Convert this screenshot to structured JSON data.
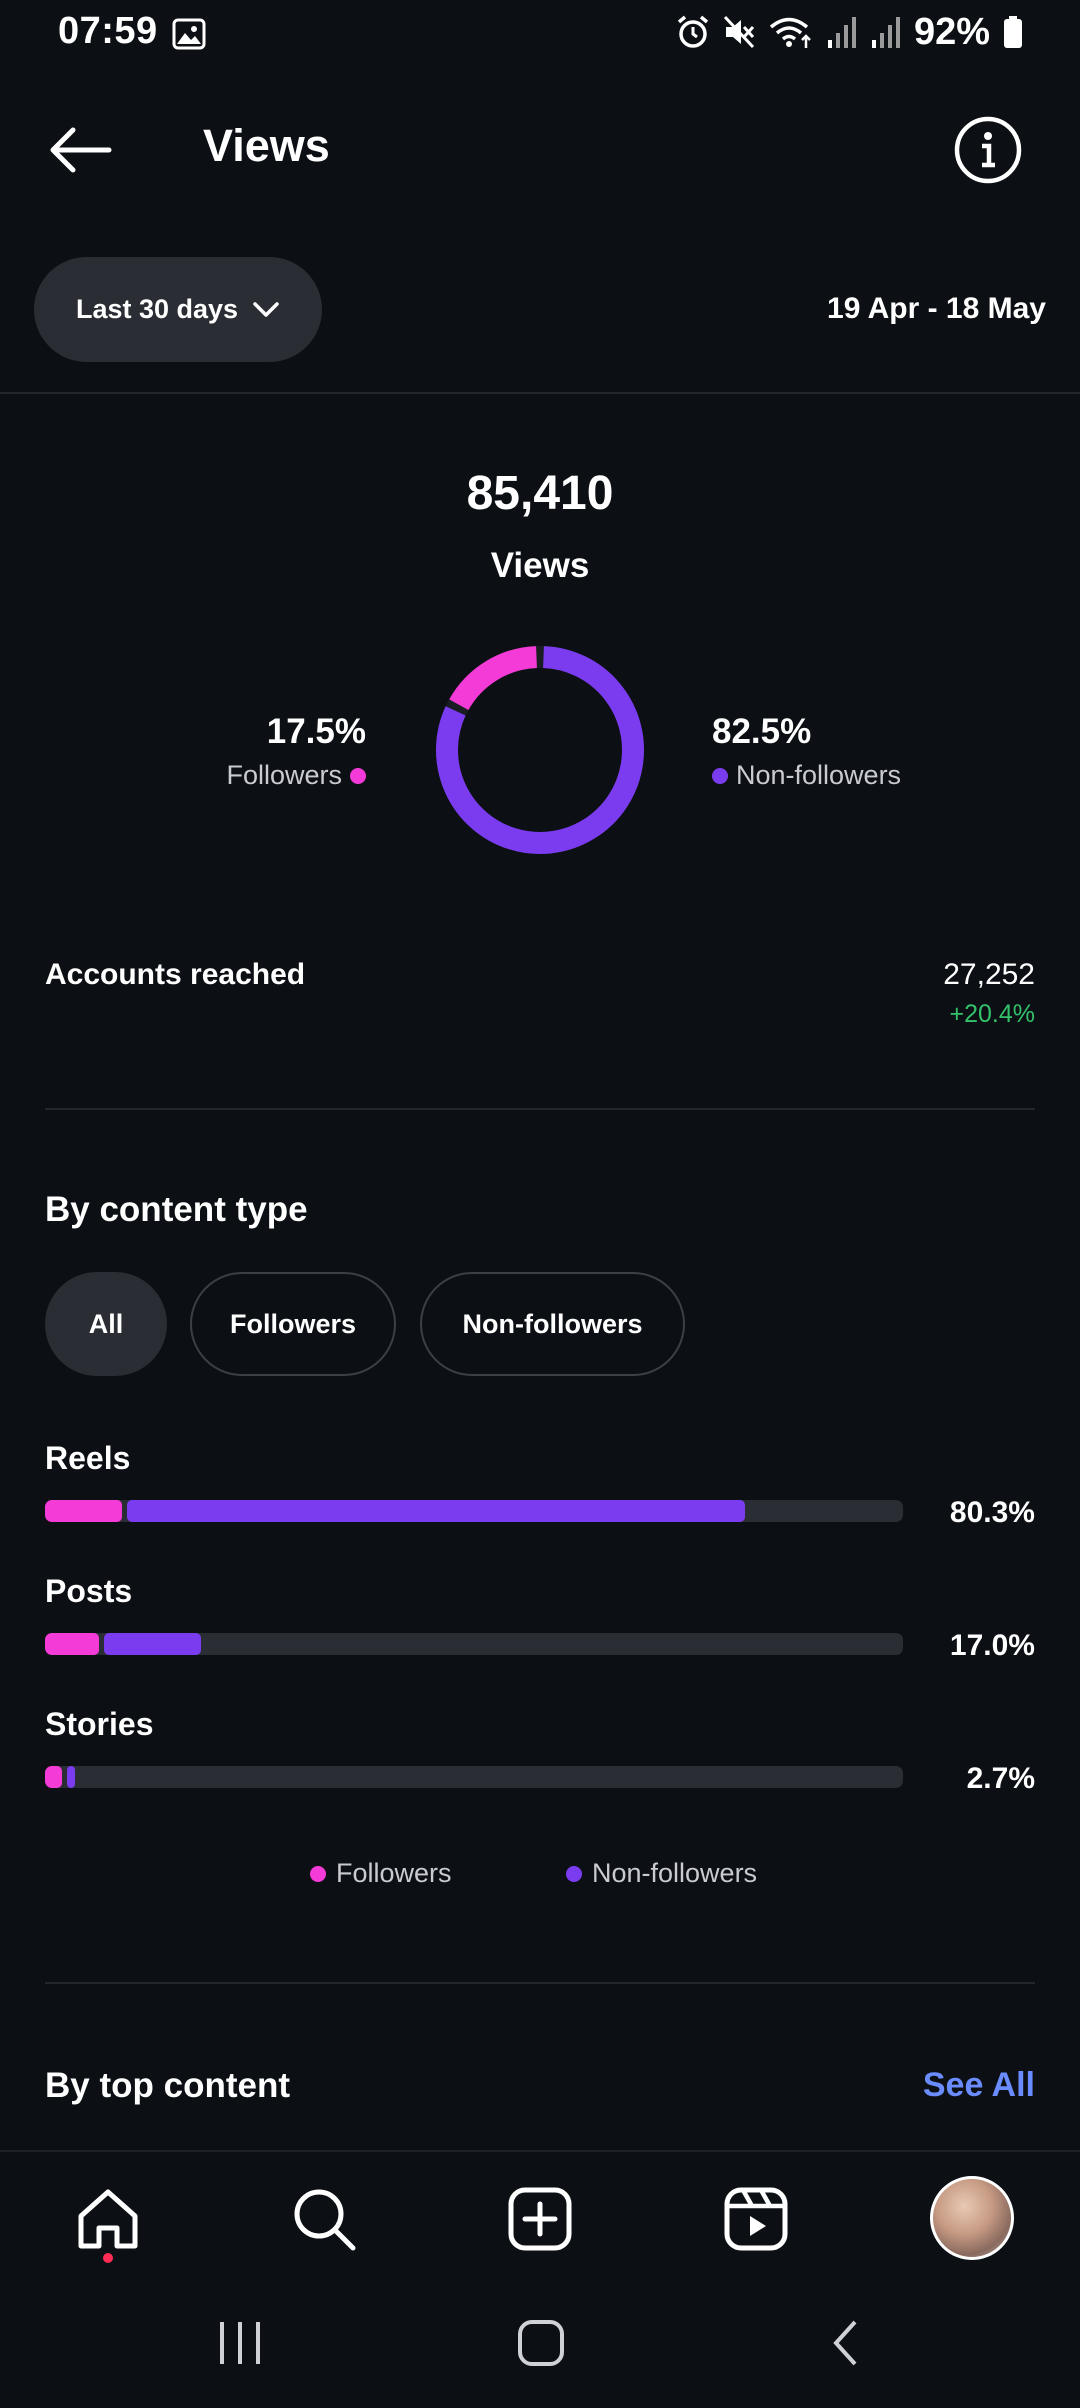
{
  "status_bar": {
    "time": "07:59",
    "battery": "92%",
    "icons": [
      "gallery-icon",
      "alarm-icon",
      "mute-icon",
      "wifi-icon",
      "signal-icon",
      "signal-icon",
      "battery-icon"
    ]
  },
  "header": {
    "title": "Views",
    "back_icon": "arrow-left-icon",
    "info_icon": "info-icon"
  },
  "range": {
    "selected": "Last 30 days",
    "dates": "19 Apr - 18 May"
  },
  "summary": {
    "total": "85,410",
    "label": "Views",
    "followers_pct": "17.5%",
    "followers_label": "Followers",
    "non_followers_pct": "82.5%",
    "non_followers_label": "Non-followers",
    "followers_fraction": 0.175,
    "non_followers_fraction": 0.825
  },
  "accounts_reached": {
    "label": "Accounts reached",
    "value": "27,252",
    "change": "+20.4%"
  },
  "content_type": {
    "title": "By content type",
    "filters": [
      "All",
      "Followers",
      "Non-followers"
    ],
    "active_filter": "All",
    "items": [
      {
        "label": "Reels",
        "pct": "80.3%",
        "followers_fraction": 0.09,
        "non_followers_fraction": 0.72
      },
      {
        "label": "Posts",
        "pct": "17.0%",
        "followers_fraction": 0.063,
        "non_followers_fraction": 0.113
      },
      {
        "label": "Stories",
        "pct": "2.7%",
        "followers_fraction": 0.02,
        "non_followers_fraction": 0.009
      }
    ],
    "legend": [
      "Followers",
      "Non-followers"
    ]
  },
  "top_content": {
    "title": "By top content",
    "see_all": "See All"
  },
  "colors": {
    "followers": "#f43bd8",
    "non_followers": "#7b3cf0",
    "positive": "#33c26b",
    "link": "#6b8cff"
  },
  "bottom_nav": [
    "home-icon",
    "search-icon",
    "create-icon",
    "reels-icon",
    "profile-avatar"
  ]
}
